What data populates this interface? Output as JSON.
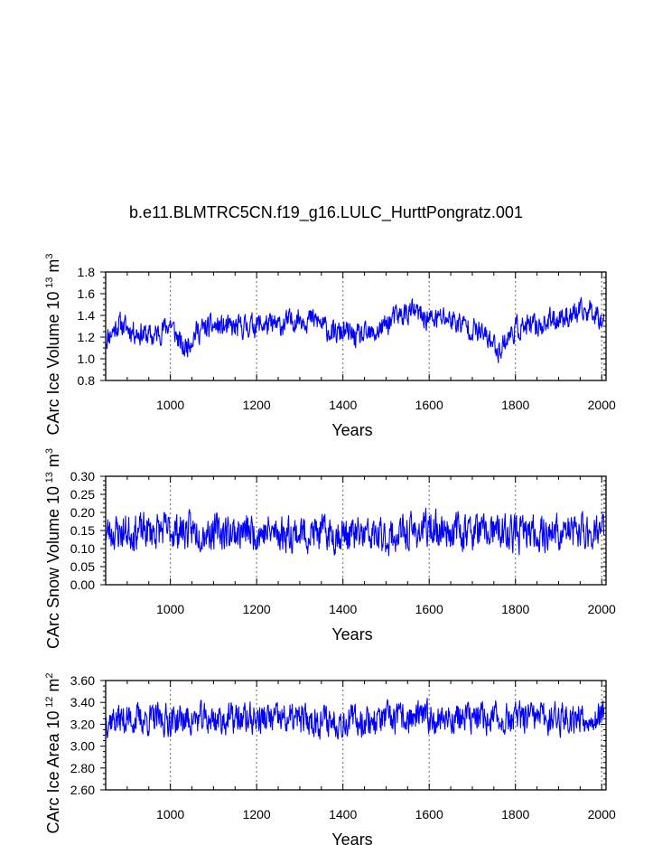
{
  "title": "b.e11.BLMTRC5CN.f19_g16.LULC_HurttPongratz.001",
  "line_color": "#0000ff",
  "grid_color": "#808080",
  "chart_data": [
    {
      "type": "line",
      "ylabel_main": "CArc Ice Volume 10",
      "ylabel_exp": "13",
      "ylabel_unit": "m",
      "ylabel_unit_exp": "3",
      "xlabel": "Years",
      "xlim": [
        850,
        2010
      ],
      "ylim": [
        0.8,
        1.8
      ],
      "yticks": [
        0.8,
        1.0,
        1.2,
        1.4,
        1.6,
        1.8
      ],
      "ytick_labels": [
        "0.8",
        "1.0",
        "1.2",
        "1.4",
        "1.6",
        "1.8"
      ],
      "xticks": [
        1000,
        1200,
        1400,
        1600,
        1800,
        2000
      ],
      "xtick_labels": [
        "1000",
        "1200",
        "1400",
        "1600",
        "1800",
        "2000"
      ],
      "series": {
        "name": "CArc Ice Volume",
        "base_x": [
          850,
          880,
          920,
          960,
          1000,
          1030,
          1060,
          1100,
          1150,
          1200,
          1250,
          1300,
          1340,
          1380,
          1400,
          1430,
          1470,
          1520,
          1560,
          1600,
          1640,
          1700,
          1740,
          1760,
          1800,
          1850,
          1900,
          1950,
          1980,
          2005
        ],
        "base_y": [
          1.18,
          1.32,
          1.25,
          1.2,
          1.33,
          1.08,
          1.25,
          1.3,
          1.28,
          1.32,
          1.3,
          1.38,
          1.35,
          1.22,
          1.25,
          1.2,
          1.22,
          1.38,
          1.44,
          1.36,
          1.38,
          1.28,
          1.18,
          1.08,
          1.28,
          1.3,
          1.38,
          1.42,
          1.45,
          1.35
        ],
        "noise": 0.12,
        "clip": [
          0.86,
          1.66
        ],
        "seed": 11
      }
    },
    {
      "type": "line",
      "ylabel_main": "CArc Snow Volume 10",
      "ylabel_exp": "13",
      "ylabel_unit": "m",
      "ylabel_unit_exp": "3",
      "xlabel": "Years",
      "xlim": [
        850,
        2010
      ],
      "ylim": [
        0.0,
        0.3
      ],
      "yticks": [
        0.0,
        0.05,
        0.1,
        0.15,
        0.2,
        0.25,
        0.3
      ],
      "ytick_labels": [
        "0.00",
        "0.05",
        "0.10",
        "0.15",
        "0.20",
        "0.25",
        "0.30"
      ],
      "xticks": [
        1000,
        1200,
        1400,
        1600,
        1800,
        2000
      ],
      "xtick_labels": [
        "1000",
        "1200",
        "1400",
        "1600",
        "1800",
        "2000"
      ],
      "series": {
        "name": "CArc Snow Volume",
        "base_x": [
          850,
          1000,
          1200,
          1400,
          1500,
          1600,
          1800,
          2005
        ],
        "base_y": [
          0.145,
          0.15,
          0.145,
          0.14,
          0.13,
          0.155,
          0.14,
          0.15
        ],
        "noise": 0.055,
        "clip": [
          0.03,
          0.28
        ],
        "seed": 23
      }
    },
    {
      "type": "line",
      "ylabel_main": "CArc Ice Area 10",
      "ylabel_exp": "12",
      "ylabel_unit": "m",
      "ylabel_unit_exp": "2",
      "xlabel": "Years",
      "xlim": [
        850,
        2010
      ],
      "ylim": [
        2.6,
        3.6
      ],
      "yticks": [
        2.6,
        2.8,
        3.0,
        3.2,
        3.4,
        3.6
      ],
      "ytick_labels": [
        "2.60",
        "2.80",
        "3.00",
        "3.20",
        "3.40",
        "3.60"
      ],
      "xticks": [
        1000,
        1200,
        1400,
        1600,
        1800,
        2000
      ],
      "xtick_labels": [
        "1000",
        "1200",
        "1400",
        "1600",
        "1800",
        "2000"
      ],
      "series": {
        "name": "CArc Ice Area",
        "base_x": [
          850,
          1000,
          1200,
          1400,
          1600,
          1800,
          2005
        ],
        "base_y": [
          3.25,
          3.24,
          3.25,
          3.23,
          3.26,
          3.25,
          3.27
        ],
        "noise": 0.16,
        "clip": [
          2.75,
          3.47
        ],
        "seed": 37
      }
    }
  ]
}
